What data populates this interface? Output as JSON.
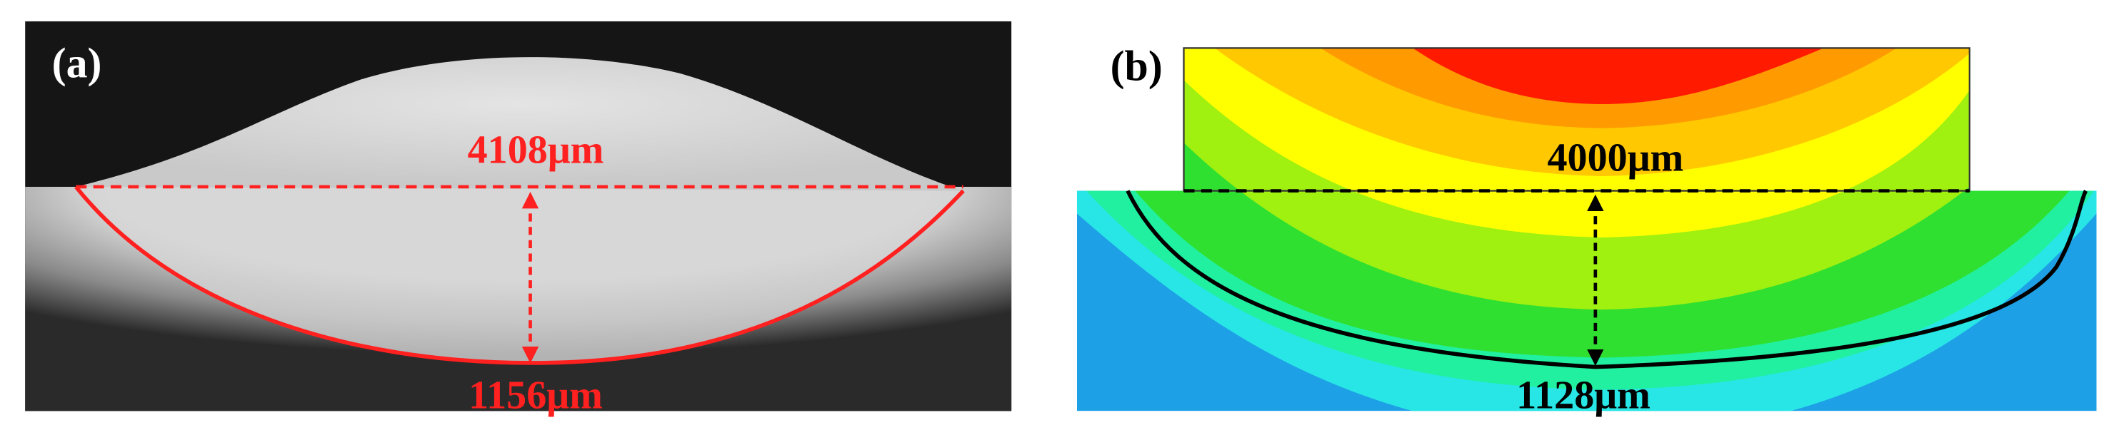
{
  "panels": [
    {
      "label": "(a)",
      "width_label": "4108μm",
      "depth_label": "1156μm"
    },
    {
      "label": "(b)",
      "width_label": "4000μm",
      "depth_label": "1128μm"
    }
  ]
}
